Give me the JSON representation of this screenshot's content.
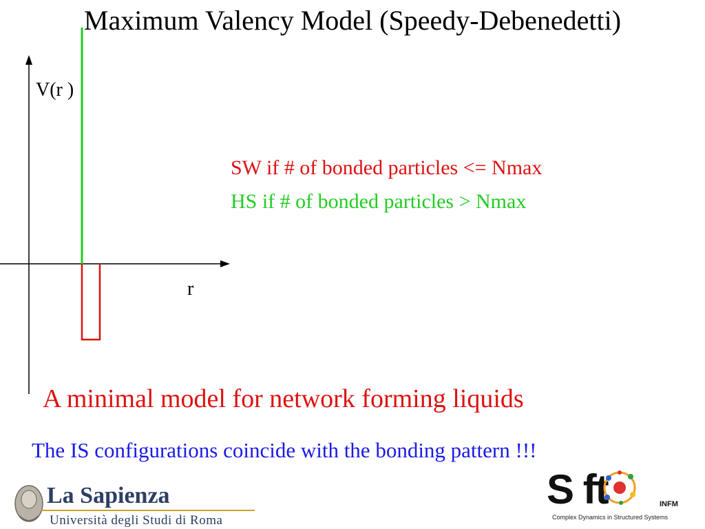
{
  "title": "Maximum Valency Model (Speedy-Debenedetti)",
  "diagram": {
    "y_axis_label": "V(r )",
    "x_axis_label": "r",
    "colors": {
      "hard_wall": "#22cc22",
      "well": "#dd1111",
      "axes": "#000000"
    }
  },
  "rules": [
    {
      "text": "SW if  # of bonded particles <= Nmax",
      "color": "#dd1111"
    },
    {
      "text": "HS  if  # of bonded particles  > Nmax",
      "color": "#22cc22"
    }
  ],
  "tagline": {
    "text": "A minimal model  for network forming liquids",
    "color": "#dd1111"
  },
  "note": {
    "text": "The IS configurations coincide with the bonding pattern !!!",
    "color": "#1a1ae6"
  },
  "logos": {
    "sapienza": {
      "name": "La Sapienza",
      "subtitle": "Università degli Studi di Roma"
    },
    "soft": {
      "word": "S ft",
      "org": "INFM",
      "subtitle": "Complex Dynamics in Structured Systems"
    }
  }
}
